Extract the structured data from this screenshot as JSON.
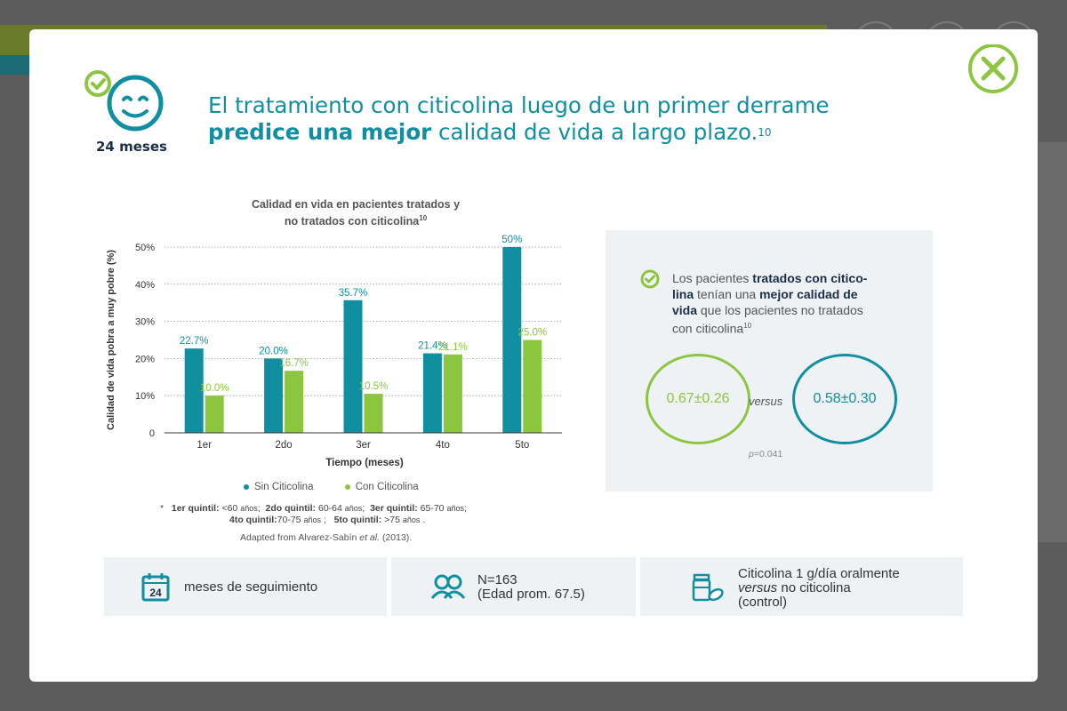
{
  "colors": {
    "teal": "#0f8f9f",
    "green": "#8cc63f",
    "navy": "#1b2f47"
  },
  "badge": {
    "label": "24 meses",
    "icon": "smiley-face-icon"
  },
  "headline": {
    "line1": "El tratamiento con citicolina luego de un primer derrame",
    "bold": "predice una mejor",
    "rest": "calidad de vida a largo plazo.",
    "ref": "10"
  },
  "chart_data": {
    "type": "bar",
    "title": "Calidad en vida en pacientes tratados y",
    "title_line2": "no tratados con citicolina",
    "title_ref": "10",
    "xlabel": "Tiempo (meses)",
    "ylabel": "Calidad de vida pobra a muy pobre (%)",
    "categories": [
      "1er",
      "2do",
      "3er",
      "4to",
      "5to"
    ],
    "series": [
      {
        "name": "Sin Citicolina",
        "color": "#0f8f9f",
        "values": [
          22.7,
          20.0,
          35.7,
          21.4,
          50.0
        ],
        "labels": [
          "22.7%",
          "20.0%",
          "35.7%",
          "21.4%",
          "50%"
        ]
      },
      {
        "name": "Con Citicolina",
        "color": "#8cc63f",
        "values": [
          10.0,
          16.7,
          10.5,
          21.1,
          25.0
        ],
        "labels": [
          "10.0%",
          "16.7%",
          "10.5%",
          "21.1%",
          "25.0%"
        ]
      }
    ],
    "ylim": [
      0,
      50
    ],
    "yticks": [
      "0",
      "10%",
      "20%",
      "30%",
      "40%",
      "50%"
    ],
    "grid": true,
    "legend": "bottom"
  },
  "footnote": {
    "star": "*",
    "q1": "1er quintil:",
    "q1v": "<60",
    "q1u": "años",
    "q2": "2do quintil:",
    "q2v": "60-64",
    "q2u": "años",
    "q3": "3er quintil:",
    "q3v": "65-70",
    "q3u": "años",
    "q4": "4to quintil:",
    "q4v": "70-75",
    "q4u": "años",
    "q5": "5to quintil:",
    "q5v": ">75",
    "q5u": "años",
    "adapted_pre": "Adapted from Alvarez-Sabín",
    "adapted_etal": "et al.",
    "adapted_year": "(2013)."
  },
  "panel": {
    "t1": "Los pacientes",
    "b1": "tratados con citico-",
    "b2": "lina",
    "t2": "tenían una",
    "b3": "mejor calidad de",
    "b4": "vida",
    "t3": "que los pacientes no tratados",
    "t4": "con citicolina",
    "ref": "10",
    "treated": "0.67±0.26",
    "versus": "versus",
    "untreated": "0.58±0.30",
    "p_label": "p",
    "p_value": "=0.041"
  },
  "cards": {
    "c1_num": "24",
    "c1": "meses de seguimiento",
    "c2_l1": "N=163",
    "c2_l2": "(Edad prom. 67.5)",
    "c3_l1": "Citicolina 1 g/día oralmente",
    "c3_italic": "versus",
    "c3_l2": "no citicolina",
    "c3_l3": "(control)"
  }
}
